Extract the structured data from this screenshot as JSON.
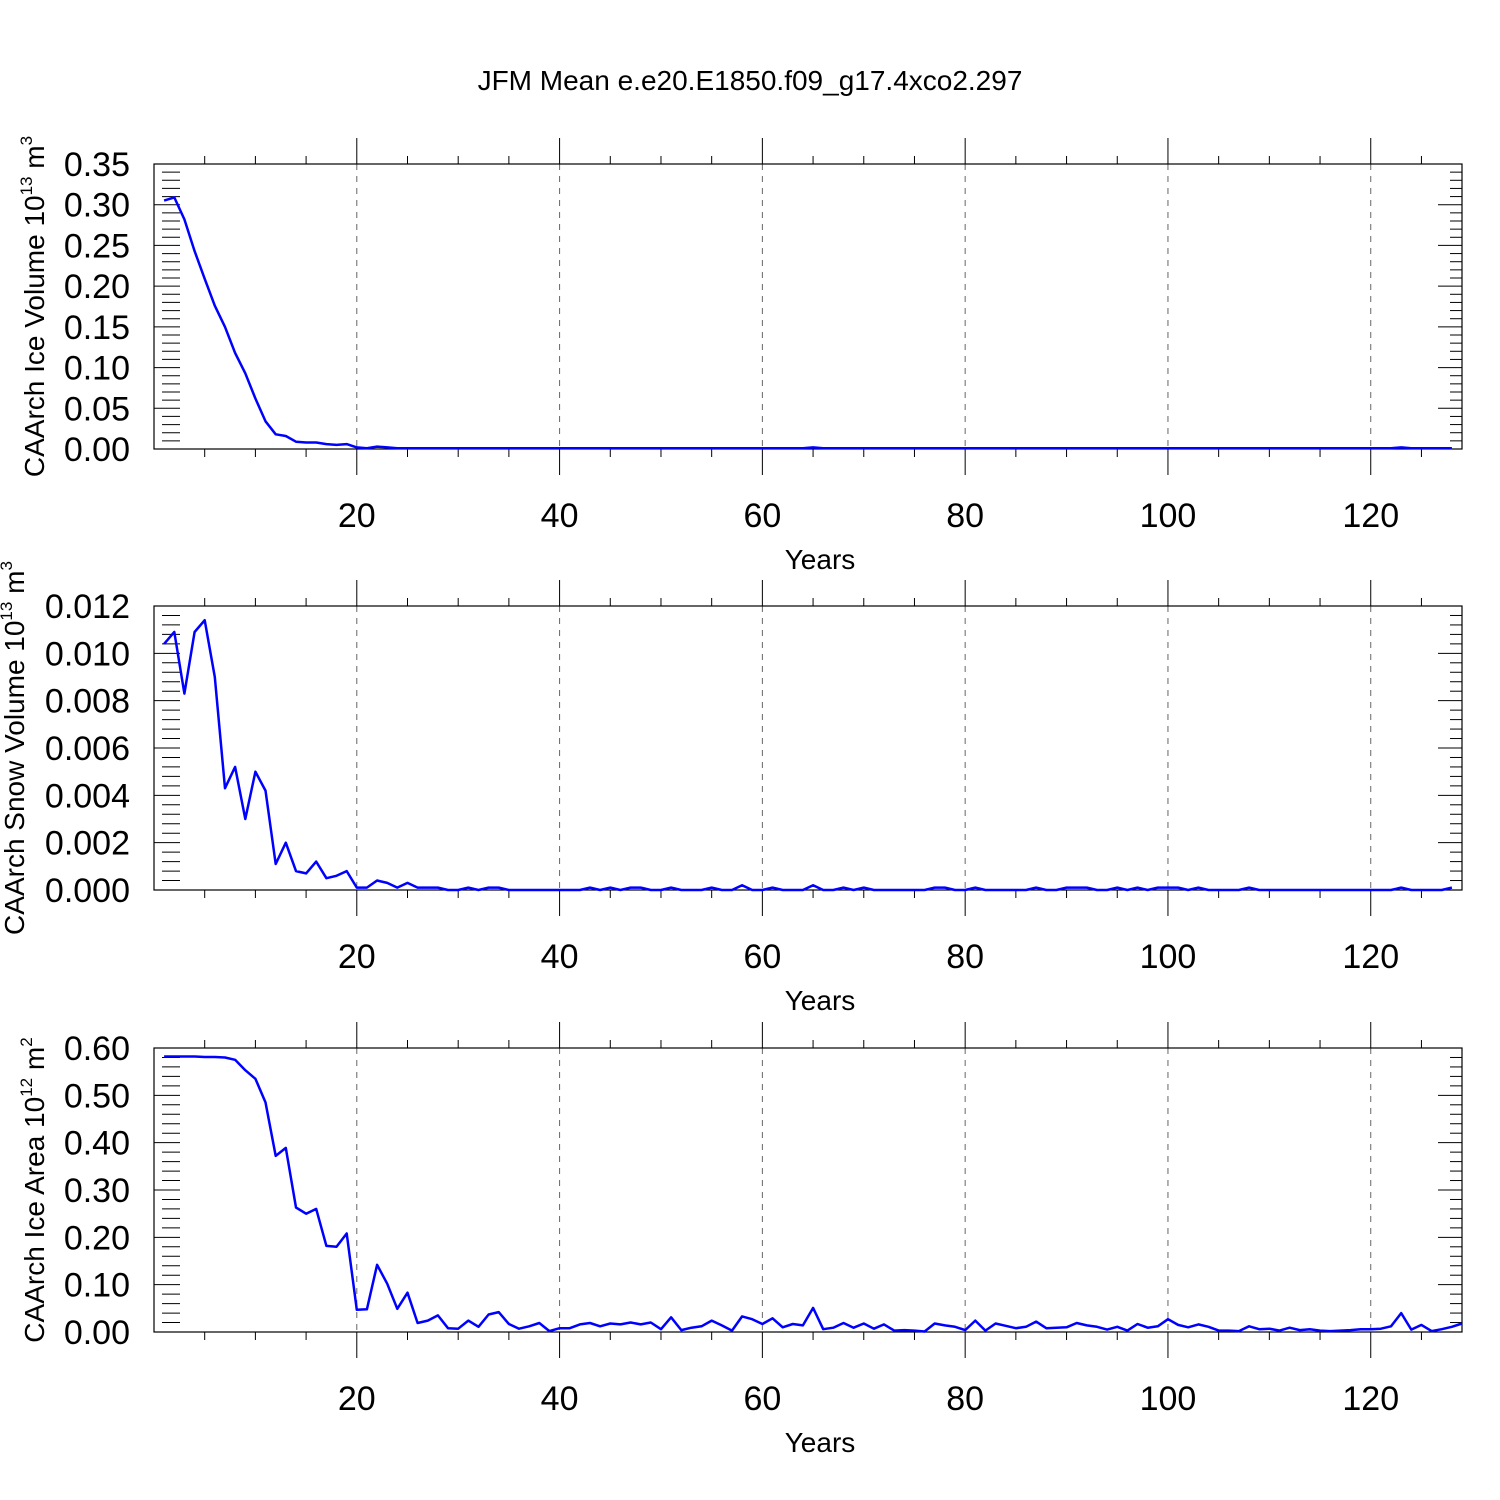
{
  "title": "JFM Mean e.e20.E1850.f09_g17.4xco2.297",
  "chart_data": [
    {
      "type": "line",
      "ylabel": "CAArch Ice Volume 10",
      "ylabel_sup": "13",
      "ylabel_unit": " m",
      "ylabel_unit_sup": "3",
      "xlabel": "Years",
      "xlim": [
        0,
        129
      ],
      "ylim": [
        0,
        0.35
      ],
      "x_ticks": [
        20,
        40,
        60,
        80,
        100,
        120
      ],
      "x_tick_labels": [
        "20",
        "40",
        "60",
        "80",
        "100",
        "120"
      ],
      "y_ticks": [
        0,
        0.05,
        0.1,
        0.15,
        0.2,
        0.25,
        0.3,
        0.35
      ],
      "y_tick_labels": [
        "0.00",
        "0.05",
        "0.10",
        "0.15",
        "0.20",
        "0.25",
        "0.30",
        "0.35"
      ],
      "y_minor_step": 0.01,
      "x_minor_step": 5,
      "grid": "vertical dashed at major x ticks",
      "color": "#0000ff",
      "series": [
        {
          "values": [
            0.305,
            0.309,
            0.282,
            0.243,
            0.209,
            0.176,
            0.15,
            0.118,
            0.093,
            0.062,
            0.034,
            0.018,
            0.016,
            0.009,
            0.008,
            0.008,
            0.006,
            0.005,
            0.006,
            0.002,
            0.001,
            0.003,
            0.002,
            0.001,
            0.001,
            0.001,
            0.001,
            0.001,
            0.001,
            0.001,
            0.001,
            0.001,
            0.001,
            0.001,
            0.001,
            0.001,
            0.001,
            0.001,
            0.001,
            0.001,
            0.001,
            0.001,
            0.001,
            0.001,
            0.001,
            0.001,
            0.001,
            0.001,
            0.001,
            0.001,
            0.001,
            0.001,
            0.001,
            0.001,
            0.001,
            0.001,
            0.001,
            0.001,
            0.001,
            0.001,
            0.001,
            0.001,
            0.001,
            0.001,
            0.002,
            0.001,
            0.001,
            0.001,
            0.001,
            0.001,
            0.001,
            0.001,
            0.001,
            0.001,
            0.001,
            0.001,
            0.001,
            0.001,
            0.001,
            0.001,
            0.001,
            0.001,
            0.001,
            0.001,
            0.001,
            0.001,
            0.001,
            0.001,
            0.001,
            0.001,
            0.001,
            0.001,
            0.001,
            0.001,
            0.001,
            0.001,
            0.001,
            0.001,
            0.001,
            0.001,
            0.001,
            0.001,
            0.001,
            0.001,
            0.001,
            0.001,
            0.001,
            0.001,
            0.001,
            0.001,
            0.001,
            0.001,
            0.001,
            0.001,
            0.001,
            0.001,
            0.001,
            0.001,
            0.001,
            0.001,
            0.001,
            0.001,
            0.002,
            0.001,
            0.001,
            0.001,
            0.001,
            0.001
          ]
        }
      ]
    },
    {
      "type": "line",
      "ylabel": "CAArch Snow Volume 10",
      "ylabel_sup": "13",
      "ylabel_unit": " m",
      "ylabel_unit_sup": "3",
      "xlabel": "Years",
      "xlim": [
        0,
        129
      ],
      "ylim": [
        0,
        0.012
      ],
      "x_ticks": [
        20,
        40,
        60,
        80,
        100,
        120
      ],
      "x_tick_labels": [
        "20",
        "40",
        "60",
        "80",
        "100",
        "120"
      ],
      "y_ticks": [
        0,
        0.002,
        0.004,
        0.006,
        0.008,
        0.01,
        0.012
      ],
      "y_tick_labels": [
        "0.000",
        "0.002",
        "0.004",
        "0.006",
        "0.008",
        "0.010",
        "0.012"
      ],
      "y_minor_step": 0.0004,
      "x_minor_step": 5,
      "grid": "vertical dashed at major x ticks",
      "color": "#0000ff",
      "series": [
        {
          "values": [
            0.0104,
            0.0109,
            0.0083,
            0.0109,
            0.0114,
            0.009,
            0.0043,
            0.0052,
            0.003,
            0.005,
            0.0042,
            0.0011,
            0.002,
            0.0008,
            0.0007,
            0.0012,
            0.0005,
            0.0006,
            0.0008,
            0.0001,
            0.0001,
            0.0004,
            0.0003,
            0.0001,
            0.0003,
            0.0001,
            0.0001,
            0.0001,
            0.0,
            0.0,
            0.0001,
            0.0,
            0.0001,
            0.0001,
            0.0,
            0.0,
            0.0,
            0.0,
            0.0,
            0.0,
            0.0,
            0.0,
            0.0001,
            0.0,
            0.0001,
            0.0,
            0.0001,
            0.0001,
            0.0,
            0.0,
            0.0001,
            0.0,
            0.0,
            0.0,
            0.0001,
            0.0,
            0.0,
            0.0002,
            0.0,
            0.0,
            0.0001,
            0.0,
            0.0,
            0.0,
            0.0002,
            0.0,
            0.0,
            0.0001,
            0.0,
            0.0001,
            0.0,
            0.0,
            0.0,
            0.0,
            0.0,
            0.0,
            0.0001,
            0.0001,
            0.0,
            0.0,
            0.0001,
            0.0,
            0.0,
            0.0,
            0.0,
            0.0,
            0.0001,
            0.0,
            0.0,
            0.0001,
            0.0001,
            0.0001,
            0.0,
            0.0,
            0.0001,
            0.0,
            0.0001,
            0.0,
            0.0001,
            0.0001,
            0.0001,
            0.0,
            0.0001,
            0.0,
            0.0,
            0.0,
            0.0,
            0.0001,
            0.0,
            0.0,
            0.0,
            0.0,
            0.0,
            0.0,
            0.0,
            0.0,
            0.0,
            0.0,
            0.0,
            0.0,
            0.0,
            0.0,
            0.0001,
            0.0,
            0.0,
            0.0,
            0.0,
            0.0001
          ]
        }
      ]
    },
    {
      "type": "line",
      "ylabel": "CAArch Ice Area 10",
      "ylabel_sup": "12",
      "ylabel_unit": " m",
      "ylabel_unit_sup": "2",
      "xlabel": "Years",
      "xlim": [
        0,
        129
      ],
      "ylim": [
        0,
        0.6
      ],
      "x_ticks": [
        20,
        40,
        60,
        80,
        100,
        120
      ],
      "x_tick_labels": [
        "20",
        "40",
        "60",
        "80",
        "100",
        "120"
      ],
      "y_ticks": [
        0,
        0.1,
        0.2,
        0.3,
        0.4,
        0.5,
        0.6
      ],
      "y_tick_labels": [
        "0.00",
        "0.10",
        "0.20",
        "0.30",
        "0.40",
        "0.50",
        "0.60"
      ],
      "y_minor_step": 0.02,
      "x_minor_step": 5,
      "grid": "vertical dashed at major x ticks",
      "color": "#0000ff",
      "series": [
        {
          "values": [
            0.582,
            0.582,
            0.582,
            0.582,
            0.581,
            0.581,
            0.58,
            0.575,
            0.553,
            0.535,
            0.485,
            0.372,
            0.389,
            0.263,
            0.25,
            0.26,
            0.182,
            0.18,
            0.208,
            0.047,
            0.048,
            0.142,
            0.102,
            0.049,
            0.083,
            0.019,
            0.024,
            0.035,
            0.008,
            0.007,
            0.024,
            0.011,
            0.037,
            0.042,
            0.017,
            0.007,
            0.012,
            0.019,
            0.002,
            0.008,
            0.008,
            0.016,
            0.019,
            0.012,
            0.018,
            0.016,
            0.02,
            0.016,
            0.02,
            0.006,
            0.031,
            0.004,
            0.009,
            0.012,
            0.024,
            0.014,
            0.003,
            0.033,
            0.027,
            0.017,
            0.029,
            0.01,
            0.017,
            0.014,
            0.051,
            0.006,
            0.009,
            0.019,
            0.009,
            0.018,
            0.007,
            0.016,
            0.003,
            0.004,
            0.003,
            0.001,
            0.018,
            0.014,
            0.011,
            0.004,
            0.024,
            0.003,
            0.018,
            0.013,
            0.008,
            0.011,
            0.022,
            0.008,
            0.009,
            0.01,
            0.019,
            0.014,
            0.011,
            0.005,
            0.011,
            0.003,
            0.017,
            0.009,
            0.012,
            0.027,
            0.015,
            0.01,
            0.016,
            0.011,
            0.003,
            0.003,
            0.002,
            0.012,
            0.006,
            0.007,
            0.003,
            0.009,
            0.004,
            0.006,
            0.003,
            0.002,
            0.003,
            0.004,
            0.006,
            0.006,
            0.007,
            0.012,
            0.04,
            0.005,
            0.015,
            0.002,
            0.006,
            0.011,
            0.018
          ]
        }
      ]
    }
  ]
}
